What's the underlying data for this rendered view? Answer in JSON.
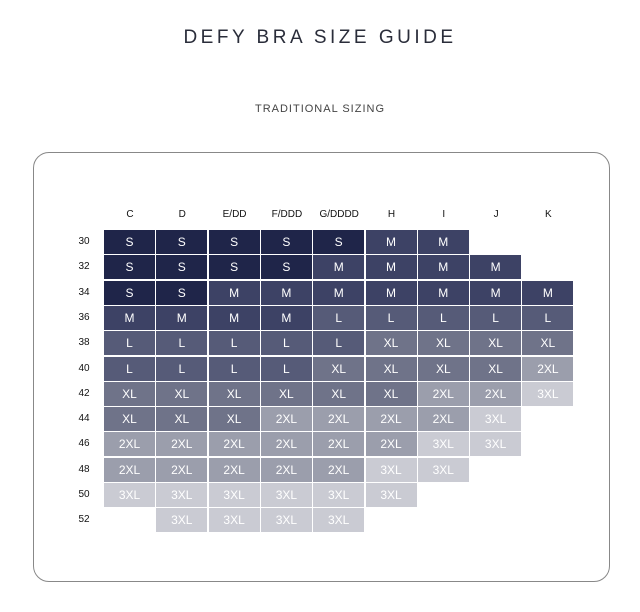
{
  "header": {
    "title": "DEFY BRA SIZE GUIDE",
    "subtitle": "TRADITIONAL SIZING"
  },
  "table": {
    "columns": [
      "C",
      "D",
      "E/DD",
      "F/DDD",
      "G/DDDD",
      "H",
      "I",
      "J",
      "K"
    ],
    "rows": [
      {
        "band": "30",
        "cells": [
          "S",
          "S",
          "S",
          "S",
          "S",
          "M",
          "M",
          null,
          null
        ]
      },
      {
        "band": "32",
        "cells": [
          "S",
          "S",
          "S",
          "S",
          "M",
          "M",
          "M",
          "M",
          null
        ]
      },
      {
        "band": "34",
        "cells": [
          "S",
          "S",
          "M",
          "M",
          "M",
          "M",
          "M",
          "M",
          "M"
        ]
      },
      {
        "band": "36",
        "cells": [
          "M",
          "M",
          "M",
          "M",
          "L",
          "L",
          "L",
          "L",
          "L"
        ]
      },
      {
        "band": "38",
        "cells": [
          "L",
          "L",
          "L",
          "L",
          "L",
          "XL",
          "XL",
          "XL",
          "XL"
        ]
      },
      {
        "band": "40",
        "cells": [
          "L",
          "L",
          "L",
          "L",
          "XL",
          "XL",
          "XL",
          "XL",
          "2XL"
        ]
      },
      {
        "band": "42",
        "cells": [
          "XL",
          "XL",
          "XL",
          "XL",
          "XL",
          "XL",
          "2XL",
          "2XL",
          "3XL"
        ]
      },
      {
        "band": "44",
        "cells": [
          "XL",
          "XL",
          "XL",
          "2XL",
          "2XL",
          "2XL",
          "2XL",
          "3XL",
          null
        ]
      },
      {
        "band": "46",
        "cells": [
          "2XL",
          "2XL",
          "2XL",
          "2XL",
          "2XL",
          "2XL",
          "3XL",
          "3XL",
          null
        ]
      },
      {
        "band": "48",
        "cells": [
          "2XL",
          "2XL",
          "2XL",
          "2XL",
          "2XL",
          "3XL",
          "3XL",
          null,
          null
        ]
      },
      {
        "band": "50",
        "cells": [
          "3XL",
          "3XL",
          "3XL",
          "3XL",
          "3XL",
          "3XL",
          null,
          null,
          null
        ]
      },
      {
        "band": "52",
        "cells": [
          null,
          "3XL",
          "3XL",
          "3XL",
          "3XL",
          null,
          null,
          null,
          null
        ]
      }
    ],
    "size_colors": {
      "S": "#1f2549",
      "M": "#3d4265",
      "L": "#565b78",
      "XL": "#6f7389",
      "2XL": "#9b9eac",
      "3XL": "#cacbd3"
    }
  }
}
